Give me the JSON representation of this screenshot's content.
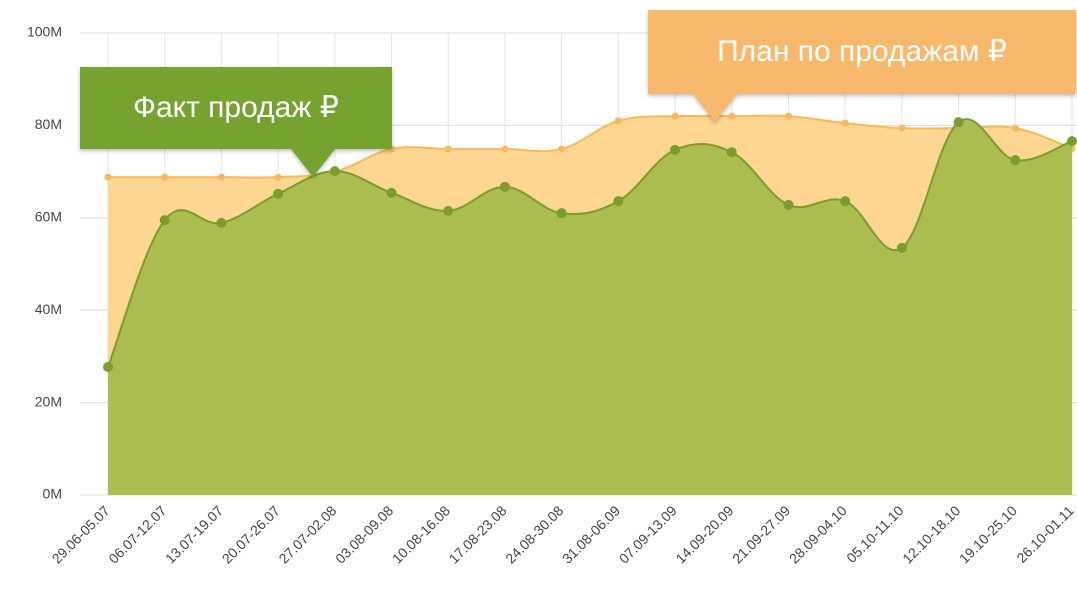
{
  "chart_data": {
    "type": "area",
    "categories": [
      "29.06-05.07",
      "06.07-12.07",
      "13.07-19.07",
      "20.07-26.07",
      "27.07-02.08",
      "03.08-09.08",
      "10.08-16.08",
      "17.08-23.08",
      "24.08-30.08",
      "31.08-06.09",
      "07.09-13.09",
      "14.09-20.09",
      "21.09-27.09",
      "28.09-04.10",
      "05.10-11.10",
      "12.10-18.10",
      "19.10-25.10",
      "26.10-01.11"
    ],
    "series": [
      {
        "name": "План по продажам ₽",
        "color": "#f7b95c",
        "fill": "#fdd48c",
        "values": [
          68.8,
          68.8,
          68.8,
          68.8,
          70,
          74.9,
          74.9,
          74.9,
          74.9,
          81,
          82,
          82,
          82,
          80.5,
          79.4,
          79.4,
          79.4,
          75
        ]
      },
      {
        "name": "Факт продаж ₽",
        "color": "#7b9c2e",
        "fill": "#a6bd4c",
        "values": [
          27.7,
          59.5,
          58.9,
          65.2,
          70.1,
          65.4,
          61.5,
          66.7,
          61,
          63.6,
          74.7,
          74.2,
          62.8,
          63.6,
          53.5,
          80.7,
          72.5,
          76.6
        ]
      }
    ],
    "ylim": [
      0,
      100
    ],
    "yticks": [
      {
        "value": 0,
        "label": "0M"
      },
      {
        "value": 20,
        "label": "20M"
      },
      {
        "value": 40,
        "label": "40M"
      },
      {
        "value": 60,
        "label": "60M"
      },
      {
        "value": 80,
        "label": "80M"
      },
      {
        "value": 100,
        "label": "100M"
      }
    ],
    "grid": true
  }
}
